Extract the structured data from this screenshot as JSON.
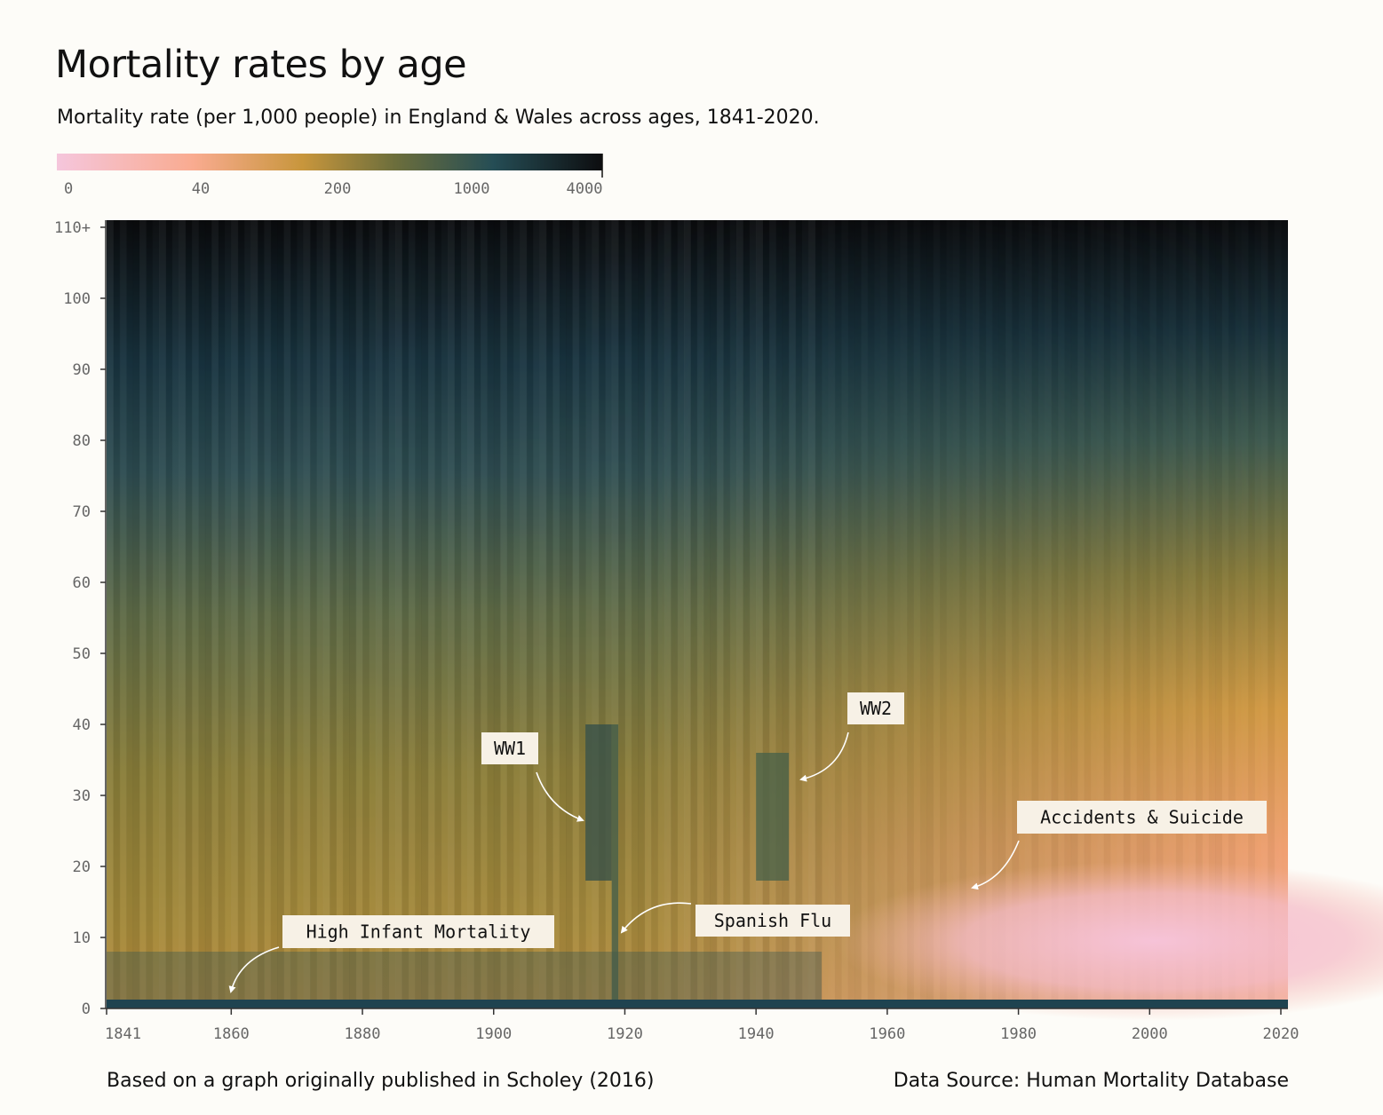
{
  "title": "Mortality rates by age",
  "subtitle": "Mortality rate (per 1,000 people) in England & Wales across ages, 1841-2020.",
  "footer": {
    "left": "Based on a graph originally published in Scholey (2016)",
    "right": "Data Source: Human Mortality Database"
  },
  "chart_data": {
    "type": "heatmap",
    "x_range": [
      1841,
      2020
    ],
    "y_range": [
      0,
      110
    ],
    "x_ticks": [
      "1841",
      "1860",
      "1880",
      "1900",
      "1920",
      "1940",
      "1960",
      "1980",
      "2000",
      "2020"
    ],
    "x_tick_values": [
      1841,
      1860,
      1880,
      1900,
      1920,
      1940,
      1960,
      1980,
      2000,
      2020
    ],
    "y_ticks": [
      "0",
      "10",
      "20",
      "30",
      "40",
      "50",
      "60",
      "70",
      "80",
      "90",
      "100",
      "110+"
    ],
    "y_tick_values": [
      0,
      10,
      20,
      30,
      40,
      50,
      60,
      70,
      80,
      90,
      100,
      110
    ],
    "color_scale": {
      "labels": [
        "0",
        "40",
        "200",
        "1000",
        "4000"
      ],
      "stops": [
        {
          "offset": 0.0,
          "color": "#f5c6dc"
        },
        {
          "offset": 0.25,
          "color": "#f9ab90"
        },
        {
          "offset": 0.45,
          "color": "#c8963c"
        },
        {
          "offset": 0.62,
          "color": "#6c6e3c"
        },
        {
          "offset": 0.8,
          "color": "#254d55"
        },
        {
          "offset": 1.0,
          "color": "#0d0d0f"
        }
      ]
    },
    "annotations": [
      {
        "label": "WW1",
        "year": 1916,
        "age": 26
      },
      {
        "label": "WW2",
        "year": 1943,
        "age": 32
      },
      {
        "label": "Accidents & Suicide",
        "year": 1972,
        "age": 17
      },
      {
        "label": "Spanish Flu",
        "year": 1918,
        "age": 10
      },
      {
        "label": "High Infant Mortality",
        "year": 1859,
        "age": 2
      }
    ]
  }
}
